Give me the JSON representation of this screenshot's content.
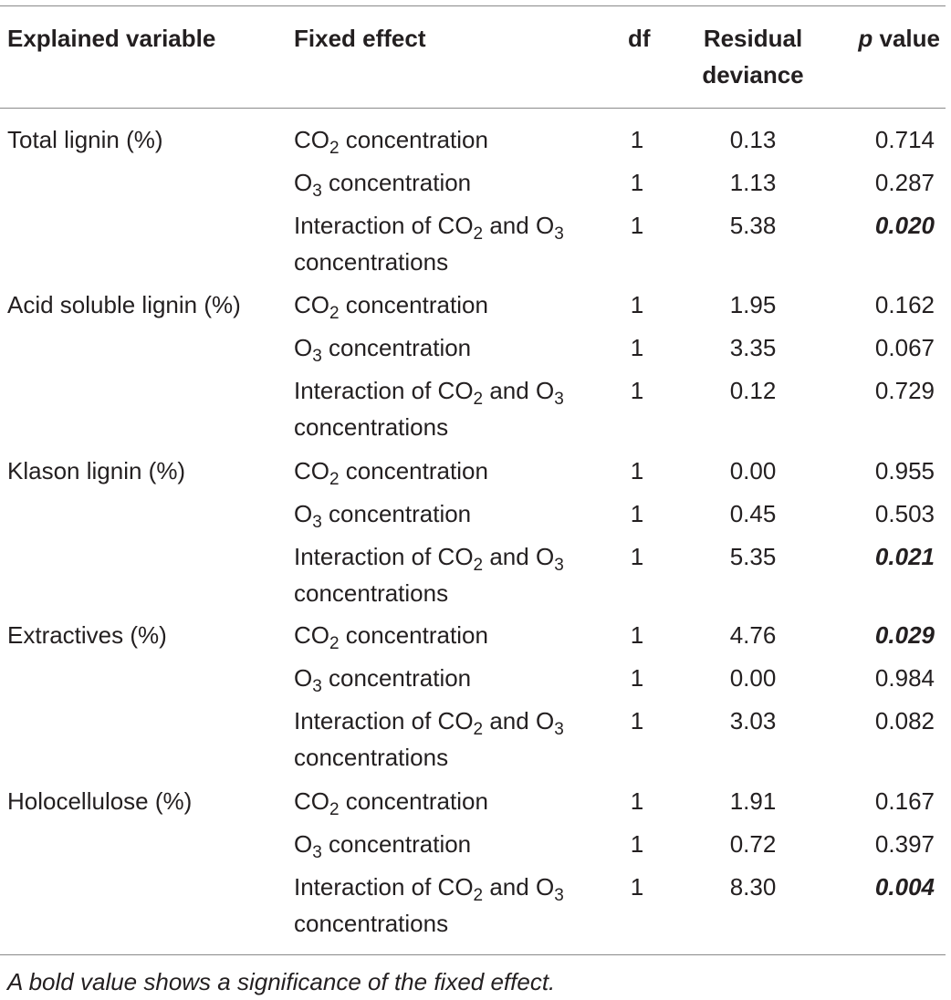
{
  "headers": {
    "explained": "Explained variable",
    "fixed": "Fixed effect",
    "df": "df",
    "residual_line1": "Residual",
    "residual_line2": "deviance",
    "p_italic": "p",
    "p_rest": " value"
  },
  "effects": {
    "co2_sym": "CO",
    "co2_sub": "2",
    "co2_label": " concentration",
    "o3_sym": "O",
    "o3_sub": "3",
    "o3_label": " concentration",
    "inter_pre": "Interaction of CO",
    "inter_sub1": "2",
    "inter_mid": " and O",
    "inter_sub2": "3",
    "inter_line2": "concentrations"
  },
  "rows": [
    {
      "variable": "Total lignin (%)",
      "values": [
        {
          "df": "1",
          "dev": "5.38",
          "p": "0.020",
          "sig": true
        }
      ]
    }
  ],
  "table": [
    {
      "variable": "Total lignin (%)",
      "r": [
        [
          "1",
          "0.13",
          "0.714"
        ],
        [
          "1",
          "1.13",
          "0.287"
        ],
        [
          "1",
          "5.38",
          "0.020"
        ]
      ],
      "sig": [
        false,
        false,
        true
      ]
    },
    {
      "variable": "Acid soluble lignin (%)",
      "r": [
        [
          "1",
          "1.95",
          "0.162"
        ],
        [
          "1",
          "3.35",
          "0.067"
        ],
        [
          "1",
          "0.12",
          "0.729"
        ]
      ],
      "sig": [
        false,
        false,
        false
      ]
    },
    {
      "variable": "Klason lignin (%)",
      "r": [
        [
          "1",
          "0.00",
          "0.955"
        ],
        [
          "1",
          "0.45",
          "0.503"
        ],
        [
          "1",
          "5.35",
          "0.021"
        ]
      ],
      "sig": [
        false,
        false,
        true
      ]
    },
    {
      "variable": "Extractives (%)",
      "r": [
        [
          "1",
          "4.76",
          "0.029"
        ],
        [
          "1",
          "0.00",
          "0.984"
        ],
        [
          "1",
          "3.03",
          "0.082"
        ]
      ],
      "sig": [
        true,
        false,
        false
      ]
    },
    {
      "variable": "Holocellulose (%)",
      "r": [
        [
          "1",
          "1.91",
          "0.167"
        ],
        [
          "1",
          "0.72",
          "0.397"
        ],
        [
          "1",
          "8.30",
          "0.004"
        ]
      ],
      "sig": [
        false,
        false,
        true
      ]
    }
  ],
  "footnote": "A bold value shows a significance of the fixed effect."
}
